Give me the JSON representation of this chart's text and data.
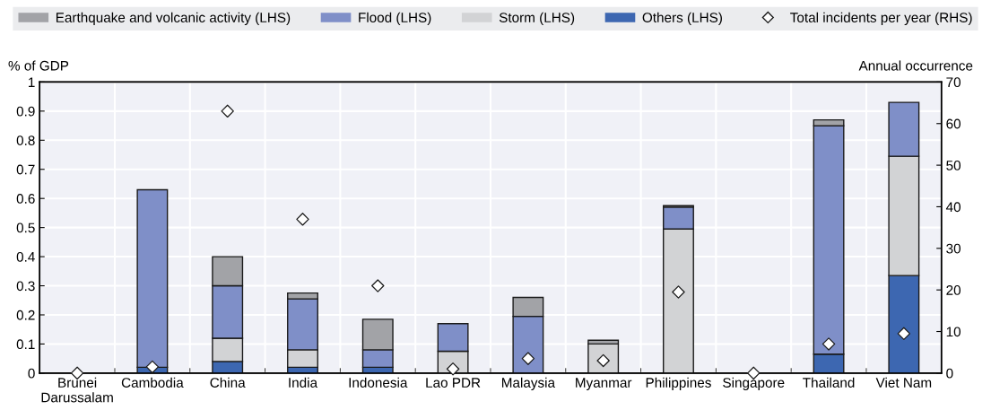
{
  "chart_data": {
    "type": "bar",
    "stacked": true,
    "ylabel": "% of GDP",
    "y2label": "Annual occurrence",
    "categories": [
      "Brunei\nDarussalam",
      "Cambodia",
      "China",
      "India",
      "Indonesia",
      "Lao PDR",
      "Malaysia",
      "Myanmar",
      "Philippines",
      "Singapore",
      "Thailand",
      "Viet Nam"
    ],
    "series": [
      {
        "name": "Others (LHS)",
        "color": "#3d67b1",
        "values": [
          0,
          0.02,
          0.04,
          0.02,
          0.02,
          0,
          0,
          0,
          null,
          0,
          0.065,
          0.335
        ]
      },
      {
        "name": "Storm (LHS)",
        "color": "#d2d3d5",
        "values": [
          0,
          0,
          0.08,
          0.06,
          0,
          0.075,
          0,
          0.1,
          0.495,
          0,
          0,
          0.41
        ]
      },
      {
        "name": "Flood (LHS)",
        "color": "#7f8fc8",
        "values": [
          0,
          0.61,
          0.18,
          0.175,
          0.06,
          0.095,
          0.195,
          0,
          0.075,
          0,
          0.785,
          0.185
        ]
      },
      {
        "name": "Earthquake and volcanic activity (LHS)",
        "color": "#a2a3a7",
        "values": [
          0,
          0,
          0.1,
          0.02,
          0.105,
          0,
          0.065,
          0.013,
          0.005,
          0,
          0.02,
          0
        ]
      },
      {
        "name": "Total incidents per year (RHS)",
        "type": "scatter",
        "axis": "y2",
        "marker": "diamond",
        "color": "#ffffff",
        "values": [
          0,
          1.5,
          63,
          37,
          21,
          1,
          3.5,
          3,
          19.5,
          0,
          7,
          9.5
        ]
      }
    ],
    "ylim": [
      0,
      1
    ],
    "yticks": [
      0,
      0.1,
      0.2,
      0.3,
      0.4,
      0.5,
      0.6,
      0.7,
      0.8,
      0.9,
      1
    ],
    "y2lim": [
      0,
      70
    ],
    "y2ticks": [
      0,
      10,
      20,
      30,
      40,
      50,
      60,
      70
    ],
    "grid": true,
    "legend": "top"
  }
}
